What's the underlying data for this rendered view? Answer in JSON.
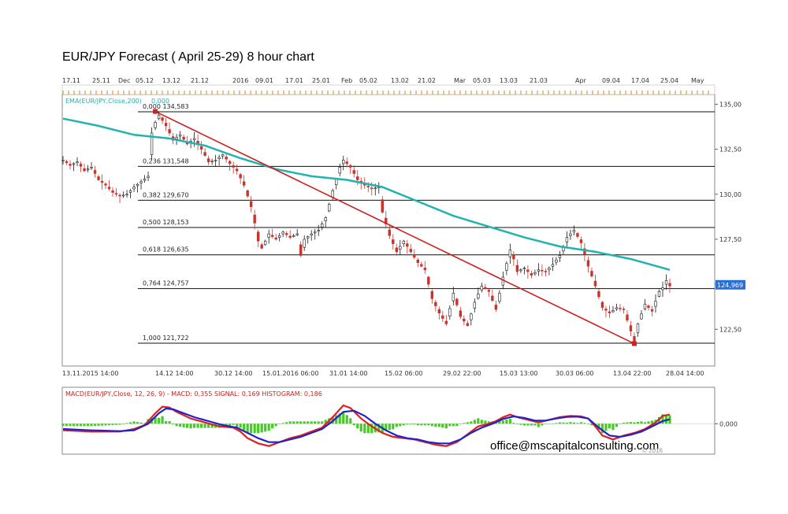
{
  "title": "EUR/JPY Forecast ( April 25-29) 8 hour chart",
  "email": "office@mscapitalconsulting.com",
  "copyright": "© 2016",
  "colors": {
    "ema": "#21b3b0",
    "trend": "#cc2222",
    "macd": "#e0201e",
    "signal": "#2222cc",
    "histogram": "#44cc22",
    "up": "#1a1a1a",
    "down": "#c8342c"
  },
  "chart_data": [
    {
      "type": "candlestick",
      "top_date_labels": [
        "17.11",
        "25.11",
        "Dec",
        "05.12",
        "13.12",
        "21.12",
        "2016",
        "09.01",
        "17.01",
        "25.01",
        "Feb",
        "05.02",
        "13.02",
        "21.02",
        "Mar",
        "05.03",
        "13.03",
        "21.03",
        "Apr",
        "09.04",
        "17.04",
        "25.04",
        "May"
      ],
      "bottom_date_labels": [
        "13.11.2015 14:00",
        "14.12 14:00",
        "30.12 14:00",
        "15.01.2016 06:00",
        "31.01 14:00",
        "15.02 06:00",
        "29.02 22:00",
        "15.03 13:00",
        "30.03 06:00",
        "13.04 22:00",
        "28.04 14:00"
      ],
      "y_ticks": [
        "135,00",
        "132,50",
        "130,00",
        "127,50",
        "125,00",
        "122,50"
      ],
      "ylim": [
        120.5,
        135.5
      ],
      "current_price_label": "124,969",
      "current_price": 124.969,
      "ema_label": "EMA(EUR/JPY,Close,200)",
      "ema_value_label": "0,000",
      "fibonacci": [
        {
          "label": "0,000 134,583",
          "value": 134.583
        },
        {
          "label": "0,236 131,548",
          "value": 131.548
        },
        {
          "label": "0,382 129,670",
          "value": 129.67
        },
        {
          "label": "0,500 128,153",
          "value": 128.153
        },
        {
          "label": "0,618 126,635",
          "value": 126.635
        },
        {
          "label": "0,764 124,757",
          "value": 124.757
        },
        {
          "label": "1,000 121,722",
          "value": 121.722
        }
      ],
      "price_path": [
        [
          0,
          131.9
        ],
        [
          2,
          131.6
        ],
        [
          4,
          131.8
        ],
        [
          6,
          131.3
        ],
        [
          8,
          131.5
        ],
        [
          10,
          130.8
        ],
        [
          12,
          130.5
        ],
        [
          14,
          130.1
        ],
        [
          16,
          129.9
        ],
        [
          18,
          130.0
        ],
        [
          20,
          130.4
        ],
        [
          22,
          130.7
        ],
        [
          24,
          131.0
        ],
        [
          25,
          133.4
        ],
        [
          26,
          134.0
        ],
        [
          27,
          134.4
        ],
        [
          29,
          133.8
        ],
        [
          31,
          133.0
        ],
        [
          33,
          133.3
        ],
        [
          35,
          132.8
        ],
        [
          37,
          133.1
        ],
        [
          39,
          132.5
        ],
        [
          41,
          131.8
        ],
        [
          43,
          131.9
        ],
        [
          45,
          132.2
        ],
        [
          47,
          131.7
        ],
        [
          49,
          131.3
        ],
        [
          51,
          130.5
        ],
        [
          53,
          129.3
        ],
        [
          54,
          128.4
        ],
        [
          55,
          127.4
        ],
        [
          56,
          127.0
        ],
        [
          58,
          127.8
        ],
        [
          60,
          127.5
        ],
        [
          62,
          127.9
        ],
        [
          64,
          127.6
        ],
        [
          66,
          127.8
        ],
        [
          67,
          126.6
        ],
        [
          68,
          127.5
        ],
        [
          70,
          127.8
        ],
        [
          72,
          128.0
        ],
        [
          74,
          128.7
        ],
        [
          76,
          130.2
        ],
        [
          78,
          131.5
        ],
        [
          79,
          131.9
        ],
        [
          81,
          131.5
        ],
        [
          83,
          130.8
        ],
        [
          85,
          130.5
        ],
        [
          87,
          130.3
        ],
        [
          89,
          130.4
        ],
        [
          90,
          129.0
        ],
        [
          92,
          127.7
        ],
        [
          94,
          126.8
        ],
        [
          96,
          127.4
        ],
        [
          98,
          126.8
        ],
        [
          100,
          126.2
        ],
        [
          102,
          125.8
        ],
        [
          104,
          124.2
        ],
        [
          106,
          123.4
        ],
        [
          108,
          122.8
        ],
        [
          110,
          124.5
        ],
        [
          112,
          123.2
        ],
        [
          114,
          122.7
        ],
        [
          116,
          124.0
        ],
        [
          118,
          124.9
        ],
        [
          120,
          124.6
        ],
        [
          122,
          123.6
        ],
        [
          124,
          125.4
        ],
        [
          126,
          126.9
        ],
        [
          127,
          126.4
        ],
        [
          128,
          125.7
        ],
        [
          130,
          125.9
        ],
        [
          132,
          125.5
        ],
        [
          134,
          125.8
        ],
        [
          136,
          125.7
        ],
        [
          138,
          126.1
        ],
        [
          140,
          126.6
        ],
        [
          142,
          127.6
        ],
        [
          144,
          128.0
        ],
        [
          146,
          127.3
        ],
        [
          148,
          126.0
        ],
        [
          150,
          124.9
        ],
        [
          152,
          123.7
        ],
        [
          154,
          123.4
        ],
        [
          156,
          123.7
        ],
        [
          158,
          123.6
        ],
        [
          159,
          123.0
        ],
        [
          160,
          122.4
        ],
        [
          161,
          121.8
        ],
        [
          162,
          122.8
        ],
        [
          164,
          123.9
        ],
        [
          166,
          123.5
        ],
        [
          168,
          124.6
        ],
        [
          169,
          124.8
        ],
        [
          170,
          125.2
        ],
        [
          171,
          124.9
        ]
      ],
      "ema_path": [
        [
          0,
          134.2
        ],
        [
          10,
          133.8
        ],
        [
          20,
          133.3
        ],
        [
          30,
          133.1
        ],
        [
          40,
          132.7
        ],
        [
          50,
          132.0
        ],
        [
          60,
          131.4
        ],
        [
          70,
          131.0
        ],
        [
          80,
          130.8
        ],
        [
          90,
          130.4
        ],
        [
          100,
          129.6
        ],
        [
          110,
          128.8
        ],
        [
          120,
          128.2
        ],
        [
          130,
          127.6
        ],
        [
          140,
          127.1
        ],
        [
          150,
          126.8
        ],
        [
          160,
          126.4
        ],
        [
          171,
          125.8
        ]
      ],
      "trend_line": [
        [
          26,
          134.6
        ],
        [
          161,
          121.7
        ]
      ]
    },
    {
      "type": "line",
      "label": "MACD(EUR/JPY,Close, 12, 26, 9) - MACD: 0,355  SIGNAL: 0,169  HISTOGRAM: 0,186",
      "zero_label": "0,000",
      "ylim": [
        -1.1,
        1.0
      ],
      "macd": [
        [
          0,
          -0.25
        ],
        [
          8,
          -0.3
        ],
        [
          16,
          -0.3
        ],
        [
          20,
          -0.2
        ],
        [
          23,
          -0.05
        ],
        [
          26,
          0.4
        ],
        [
          28,
          0.65
        ],
        [
          30,
          0.62
        ],
        [
          32,
          0.45
        ],
        [
          36,
          0.2
        ],
        [
          40,
          0.05
        ],
        [
          44,
          -0.1
        ],
        [
          48,
          -0.15
        ],
        [
          50,
          -0.3
        ],
        [
          52,
          -0.55
        ],
        [
          55,
          -0.75
        ],
        [
          58,
          -0.85
        ],
        [
          61,
          -0.7
        ],
        [
          64,
          -0.55
        ],
        [
          67,
          -0.45
        ],
        [
          70,
          -0.3
        ],
        [
          73,
          -0.15
        ],
        [
          76,
          0.25
        ],
        [
          79,
          0.7
        ],
        [
          81,
          0.6
        ],
        [
          84,
          0.2
        ],
        [
          87,
          -0.1
        ],
        [
          90,
          -0.35
        ],
        [
          93,
          -0.5
        ],
        [
          96,
          -0.55
        ],
        [
          99,
          -0.6
        ],
        [
          102,
          -0.7
        ],
        [
          105,
          -0.8
        ],
        [
          108,
          -0.85
        ],
        [
          111,
          -0.7
        ],
        [
          114,
          -0.4
        ],
        [
          117,
          -0.1
        ],
        [
          120,
          0.0
        ],
        [
          122,
          0.1
        ],
        [
          124,
          0.25
        ],
        [
          126,
          0.35
        ],
        [
          128,
          0.25
        ],
        [
          131,
          0.15
        ],
        [
          134,
          0.05
        ],
        [
          137,
          0.15
        ],
        [
          140,
          0.25
        ],
        [
          143,
          0.3
        ],
        [
          146,
          0.28
        ],
        [
          148,
          0.2
        ],
        [
          150,
          -0.1
        ],
        [
          152,
          -0.45
        ],
        [
          155,
          -0.6
        ],
        [
          158,
          -0.45
        ],
        [
          161,
          -0.35
        ],
        [
          164,
          -0.2
        ],
        [
          167,
          0.05
        ],
        [
          169,
          0.3
        ],
        [
          171,
          0.35
        ]
      ],
      "signal": [
        [
          0,
          -0.2
        ],
        [
          8,
          -0.25
        ],
        [
          16,
          -0.28
        ],
        [
          20,
          -0.25
        ],
        [
          24,
          0.0
        ],
        [
          27,
          0.4
        ],
        [
          29,
          0.58
        ],
        [
          31,
          0.55
        ],
        [
          33,
          0.45
        ],
        [
          37,
          0.25
        ],
        [
          41,
          0.1
        ],
        [
          45,
          -0.05
        ],
        [
          49,
          -0.15
        ],
        [
          52,
          -0.35
        ],
        [
          55,
          -0.55
        ],
        [
          58,
          -0.7
        ],
        [
          61,
          -0.7
        ],
        [
          64,
          -0.6
        ],
        [
          67,
          -0.5
        ],
        [
          70,
          -0.35
        ],
        [
          73,
          -0.2
        ],
        [
          76,
          0.1
        ],
        [
          79,
          0.45
        ],
        [
          82,
          0.5
        ],
        [
          85,
          0.3
        ],
        [
          88,
          0.0
        ],
        [
          91,
          -0.25
        ],
        [
          94,
          -0.45
        ],
        [
          97,
          -0.55
        ],
        [
          100,
          -0.6
        ],
        [
          103,
          -0.7
        ],
        [
          106,
          -0.75
        ],
        [
          109,
          -0.75
        ],
        [
          112,
          -0.6
        ],
        [
          115,
          -0.35
        ],
        [
          118,
          -0.15
        ],
        [
          121,
          0.0
        ],
        [
          124,
          0.18
        ],
        [
          127,
          0.28
        ],
        [
          130,
          0.22
        ],
        [
          133,
          0.12
        ],
        [
          136,
          0.12
        ],
        [
          139,
          0.2
        ],
        [
          142,
          0.26
        ],
        [
          145,
          0.27
        ],
        [
          148,
          0.2
        ],
        [
          151,
          -0.15
        ],
        [
          154,
          -0.45
        ],
        [
          157,
          -0.5
        ],
        [
          160,
          -0.42
        ],
        [
          163,
          -0.3
        ],
        [
          166,
          -0.1
        ],
        [
          169,
          0.1
        ],
        [
          171,
          0.17
        ]
      ]
    }
  ]
}
